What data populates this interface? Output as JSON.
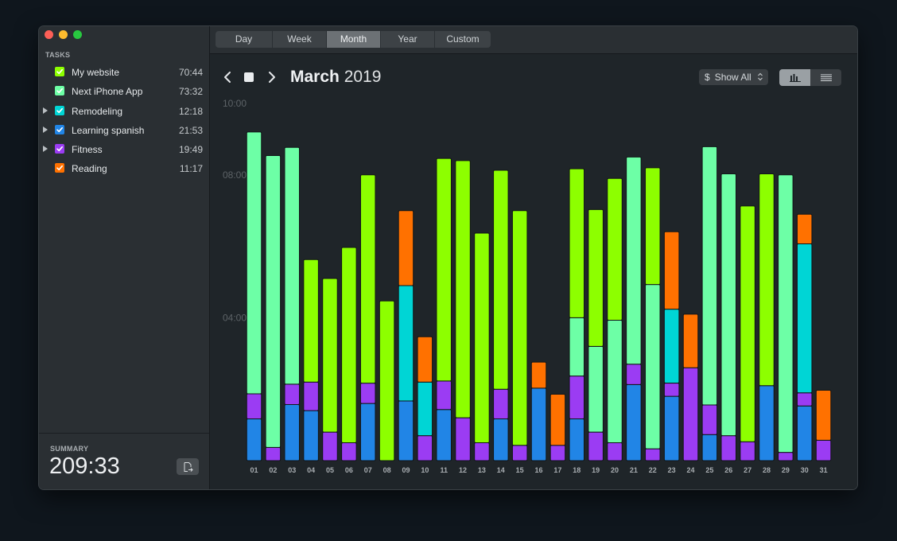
{
  "sidebar": {
    "tasks_label": "TASKS",
    "tasks": [
      {
        "name": "My website",
        "time": "70:44",
        "color": "#8dff00",
        "expandable": false
      },
      {
        "name": "Next iPhone App",
        "time": "73:32",
        "color": "#6dffa6",
        "expandable": false
      },
      {
        "name": "Remodeling",
        "time": "12:18",
        "color": "#00d5d5",
        "expandable": true
      },
      {
        "name": "Learning spanish",
        "time": "21:53",
        "color": "#2185e6",
        "expandable": true
      },
      {
        "name": "Fitness",
        "time": "19:49",
        "color": "#9b3cf3",
        "expandable": true
      },
      {
        "name": "Reading",
        "time": "11:17",
        "color": "#ff7100",
        "expandable": false
      }
    ],
    "summary_label": "SUMMARY",
    "summary_value": "209:33"
  },
  "toolbar": {
    "tabs": [
      "Day",
      "Week",
      "Month",
      "Year",
      "Custom"
    ],
    "active_tab": "Month"
  },
  "header": {
    "month": "March",
    "year": "2019",
    "filter_dollar": "$",
    "filter_label": "Show All"
  },
  "chart_data": {
    "type": "bar",
    "stacked": true,
    "categories": [
      "01",
      "02",
      "03",
      "04",
      "05",
      "06",
      "07",
      "08",
      "09",
      "10",
      "11",
      "12",
      "13",
      "14",
      "15",
      "16",
      "17",
      "18",
      "19",
      "20",
      "21",
      "22",
      "23",
      "24",
      "25",
      "26",
      "27",
      "28",
      "29",
      "30",
      "31"
    ],
    "y_tick_labels": [
      "10:00",
      "08:00",
      "04:00"
    ],
    "y_unit": "hours",
    "ylim": [
      0,
      10
    ],
    "grid": false,
    "series": [
      {
        "name": "Learning spanish",
        "color": "#2185e6",
        "values": [
          1.17,
          0,
          1.57,
          1.4,
          0,
          0,
          1.6,
          0,
          1.67,
          0,
          1.43,
          0,
          0,
          1.17,
          0,
          2.03,
          0,
          1.17,
          0,
          0,
          2.13,
          0,
          1.8,
          0,
          0.73,
          0,
          0,
          2.1,
          0,
          1.53,
          0
        ]
      },
      {
        "name": "Fitness",
        "color": "#9b3cf3",
        "values": [
          0.7,
          0.37,
          0.57,
          0.8,
          0.8,
          0.5,
          0.57,
          0,
          0,
          0.7,
          0.8,
          1.2,
          0.5,
          0.83,
          0.43,
          0,
          0.43,
          1.2,
          0.8,
          0.5,
          0.57,
          0.33,
          0.37,
          2.6,
          0.83,
          0.7,
          0.53,
          0,
          0.23,
          0.37,
          0.57
        ]
      },
      {
        "name": "Remodeling",
        "color": "#00d5d5",
        "values": [
          0,
          0,
          0,
          0,
          0,
          0,
          0,
          0,
          3.23,
          1.5,
          0,
          0,
          0,
          0,
          0,
          0,
          0,
          0,
          0,
          0,
          0,
          0,
          2.07,
          0,
          0,
          0,
          0,
          0,
          0,
          4.17,
          0
        ]
      },
      {
        "name": "Next iPhone App",
        "color": "#6dffa6",
        "values": [
          7.33,
          8.17,
          6.63,
          0,
          0,
          0,
          0,
          0,
          0,
          0,
          0,
          0,
          0,
          0,
          0,
          0,
          0,
          1.63,
          2.4,
          3.43,
          5.8,
          4.6,
          0,
          0,
          7.23,
          7.33,
          0,
          0,
          7.77,
          0,
          0
        ]
      },
      {
        "name": "My website",
        "color": "#8dff00",
        "values": [
          0,
          0,
          0,
          3.43,
          4.3,
          5.47,
          5.83,
          4.47,
          0,
          0,
          6.23,
          7.2,
          5.87,
          6.13,
          6.57,
          0,
          0,
          4.17,
          3.83,
          3.97,
          0,
          3.27,
          0,
          0,
          0,
          0,
          6.6,
          5.93,
          0,
          0,
          0
        ]
      },
      {
        "name": "Reading",
        "color": "#ff7100",
        "values": [
          0,
          0,
          0,
          0,
          0,
          0,
          0,
          0,
          2.1,
          1.27,
          0,
          0,
          0,
          0,
          0,
          0.73,
          1.43,
          0,
          0,
          0,
          0,
          0,
          2.17,
          1.5,
          0,
          0,
          0,
          0,
          0,
          0.83,
          1.4
        ]
      }
    ]
  }
}
